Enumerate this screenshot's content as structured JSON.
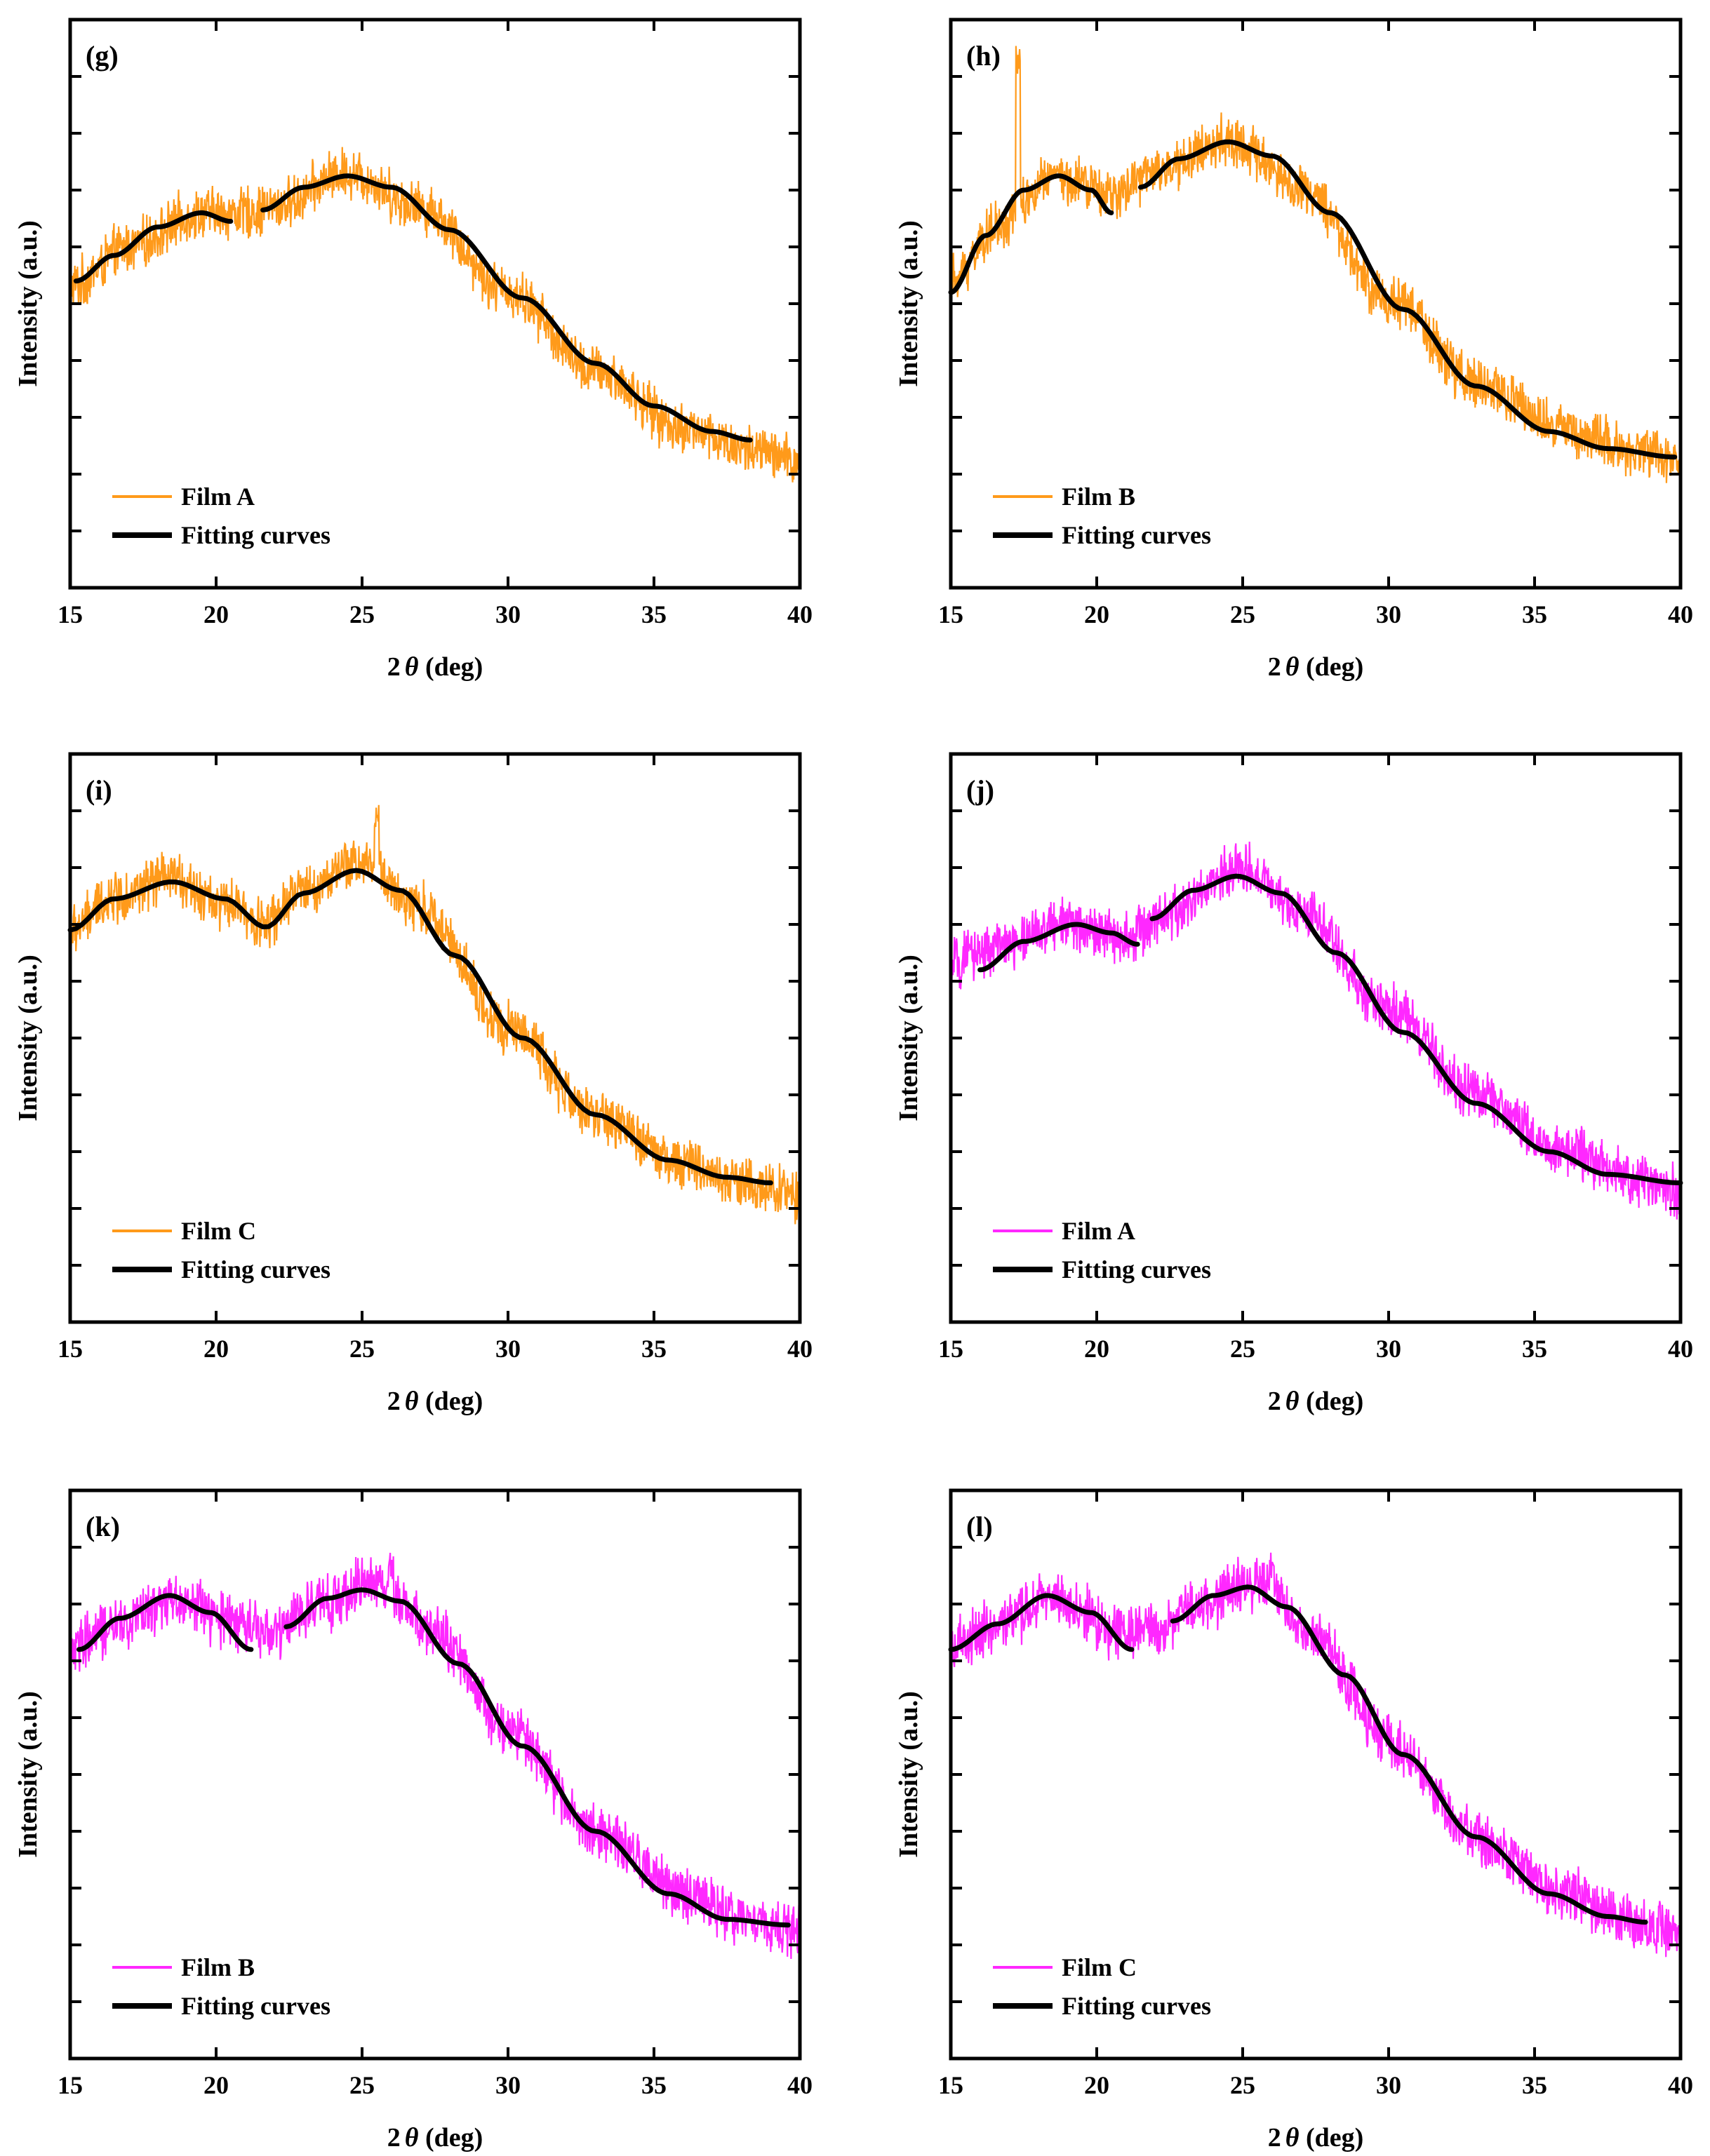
{
  "figure": {
    "colors": {
      "orange": "#ff9a1a",
      "magenta": "#ff28ff",
      "fit": "#000000",
      "axis": "#000000"
    }
  },
  "chart_data": [
    {
      "type": "line",
      "panel": "(g)",
      "legend": [
        "Film A",
        "Fitting curves"
      ],
      "color": "orange",
      "xlabel_prefix": "2",
      "xlabel_symbol": "θ",
      "xlabel_suffix": " (deg)",
      "ylabel": "Intensity (a.u.)",
      "xlim": [
        15,
        40
      ],
      "xticks": [
        15,
        20,
        25,
        30,
        35,
        40
      ],
      "ylim": [
        0,
        10
      ],
      "yticks_count": 10,
      "series": [
        {
          "name": "Film A",
          "points": [
            [
              15,
              5.3
            ],
            [
              17,
              6.0
            ],
            [
              19.5,
              6.6
            ],
            [
              21,
              6.6
            ],
            [
              22,
              6.7
            ],
            [
              24.5,
              7.3
            ],
            [
              27,
              6.7
            ],
            [
              30,
              5.2
            ],
            [
              33,
              3.8
            ],
            [
              36,
              2.8
            ],
            [
              38.5,
              2.4
            ],
            [
              40,
              2.2
            ]
          ],
          "noise": 0.55
        }
      ],
      "fits": [
        {
          "name": "Fitting curves",
          "points": [
            [
              15.2,
              5.4
            ],
            [
              16.5,
              5.85
            ],
            [
              18,
              6.35
            ],
            [
              19.5,
              6.6
            ],
            [
              20.5,
              6.45
            ]
          ]
        },
        {
          "name": "Fitting curves",
          "points": [
            [
              21.6,
              6.65
            ],
            [
              23,
              7.05
            ],
            [
              24.5,
              7.25
            ],
            [
              26,
              7.05
            ],
            [
              28,
              6.3
            ],
            [
              30.5,
              5.1
            ],
            [
              33,
              3.95
            ],
            [
              35,
              3.2
            ],
            [
              37,
              2.75
            ],
            [
              38.3,
              2.6
            ]
          ]
        }
      ]
    },
    {
      "type": "line",
      "panel": "(h)",
      "legend": [
        "Film B",
        "Fitting curves"
      ],
      "color": "orange",
      "xlabel_prefix": "2",
      "xlabel_symbol": "θ",
      "xlabel_suffix": " (deg)",
      "ylabel": "Intensity (a.u.)",
      "xlim": [
        15,
        40
      ],
      "xticks": [
        15,
        20,
        25,
        30,
        35,
        40
      ],
      "ylim": [
        0,
        10
      ],
      "yticks_count": 10,
      "series": [
        {
          "name": "Film B",
          "points": [
            [
              15,
              5.4
            ],
            [
              16.5,
              6.3
            ],
            [
              18.5,
              7.2
            ],
            [
              19.5,
              7.1
            ],
            [
              20.5,
              6.9
            ],
            [
              22,
              7.3
            ],
            [
              24.5,
              7.9
            ],
            [
              27,
              7.0
            ],
            [
              30,
              5.1
            ],
            [
              33,
              3.6
            ],
            [
              36,
              2.8
            ],
            [
              38.5,
              2.4
            ],
            [
              40,
              2.2
            ]
          ],
          "noise": 0.55,
          "spike": [
            17.3,
            9.6
          ]
        }
      ],
      "fits": [
        {
          "name": "Fitting curves",
          "points": [
            [
              15,
              5.2
            ],
            [
              16.2,
              6.2
            ],
            [
              17.5,
              7.0
            ],
            [
              18.7,
              7.25
            ],
            [
              19.8,
              7.0
            ],
            [
              20.5,
              6.6
            ]
          ]
        },
        {
          "name": "Fitting curves",
          "points": [
            [
              21.5,
              7.05
            ],
            [
              22.8,
              7.55
            ],
            [
              24.5,
              7.85
            ],
            [
              26,
              7.6
            ],
            [
              28,
              6.6
            ],
            [
              30.5,
              4.9
            ],
            [
              33,
              3.55
            ],
            [
              35.5,
              2.75
            ],
            [
              37.5,
              2.45
            ],
            [
              39.8,
              2.3
            ]
          ]
        }
      ]
    },
    {
      "type": "line",
      "panel": "(i)",
      "legend": [
        "Film C",
        "Fitting curves"
      ],
      "color": "orange",
      "xlabel_prefix": "2",
      "xlabel_symbol": "θ",
      "xlabel_suffix": " (deg)",
      "ylabel": "Intensity (a.u.)",
      "xlim": [
        15,
        40
      ],
      "xticks": [
        15,
        20,
        25,
        30,
        35,
        40
      ],
      "ylim": [
        0,
        10
      ],
      "yticks_count": 10,
      "series": [
        {
          "name": "Film C",
          "points": [
            [
              15,
              6.9
            ],
            [
              16.5,
              7.5
            ],
            [
              18.5,
              7.8
            ],
            [
              20.5,
              7.3
            ],
            [
              21.7,
              7.0
            ],
            [
              23,
              7.6
            ],
            [
              25,
              8.1
            ],
            [
              27,
              7.3
            ],
            [
              30,
              5.2
            ],
            [
              33,
              3.6
            ],
            [
              36,
              2.8
            ],
            [
              38.5,
              2.4
            ],
            [
              40,
              2.2
            ]
          ],
          "noise": 0.55,
          "spike": [
            25.5,
            9.2
          ]
        }
      ],
      "fits": [
        {
          "name": "Fitting curves",
          "points": [
            [
              15,
              6.9
            ],
            [
              16.5,
              7.45
            ],
            [
              18.5,
              7.75
            ],
            [
              20.3,
              7.45
            ],
            [
              21.7,
              6.95
            ],
            [
              23,
              7.55
            ],
            [
              24.8,
              7.95
            ],
            [
              26.3,
              7.6
            ],
            [
              28.2,
              6.45
            ],
            [
              30.5,
              5.0
            ],
            [
              33,
              3.65
            ],
            [
              35.5,
              2.85
            ],
            [
              37.5,
              2.55
            ],
            [
              39,
              2.45
            ]
          ]
        }
      ]
    },
    {
      "type": "line",
      "panel": "(j)",
      "legend": [
        "Film A",
        "Fitting curves"
      ],
      "color": "magenta",
      "xlabel_prefix": "2",
      "xlabel_symbol": "θ",
      "xlabel_suffix": " (deg)",
      "ylabel": "Intensity (a.u.)",
      "xlim": [
        15,
        40
      ],
      "xticks": [
        15,
        20,
        25,
        30,
        35,
        40
      ],
      "ylim": [
        0,
        10
      ],
      "yticks_count": 10,
      "series": [
        {
          "name": "Film A",
          "points": [
            [
              15,
              6.3
            ],
            [
              16.5,
              6.6
            ],
            [
              19,
              7.0
            ],
            [
              21,
              6.8
            ],
            [
              22.5,
              7.2
            ],
            [
              25,
              8.0
            ],
            [
              27,
              7.2
            ],
            [
              30,
              5.5
            ],
            [
              33,
              4.0
            ],
            [
              36,
              3.0
            ],
            [
              38.5,
              2.5
            ],
            [
              40,
              2.3
            ]
          ],
          "noise": 0.55
        }
      ],
      "fits": [
        {
          "name": "Fitting curves",
          "points": [
            [
              16,
              6.2
            ],
            [
              17.5,
              6.7
            ],
            [
              19.3,
              7.0
            ],
            [
              20.5,
              6.85
            ],
            [
              21.4,
              6.65
            ]
          ]
        },
        {
          "name": "Fitting curves",
          "points": [
            [
              21.9,
              7.1
            ],
            [
              23.3,
              7.6
            ],
            [
              24.8,
              7.85
            ],
            [
              26.3,
              7.55
            ],
            [
              28.2,
              6.5
            ],
            [
              30.5,
              5.1
            ],
            [
              33,
              3.85
            ],
            [
              35.5,
              3.0
            ],
            [
              37.5,
              2.6
            ],
            [
              40,
              2.45
            ]
          ]
        }
      ]
    },
    {
      "type": "line",
      "panel": "(k)",
      "legend": [
        "Film B",
        "Fitting curves"
      ],
      "color": "magenta",
      "xlabel_prefix": "2",
      "xlabel_symbol": "θ",
      "xlabel_suffix": " (deg)",
      "ylabel": "Intensity (a.u.)",
      "xlim": [
        15,
        40
      ],
      "xticks": [
        15,
        20,
        25,
        30,
        35,
        40
      ],
      "ylim": [
        0,
        10
      ],
      "yticks_count": 10,
      "series": [
        {
          "name": "Film B",
          "points": [
            [
              15,
              7.2
            ],
            [
              16.5,
              7.6
            ],
            [
              18.5,
              8.1
            ],
            [
              20.5,
              7.7
            ],
            [
              22,
              7.5
            ],
            [
              23.5,
              8.0
            ],
            [
              25.5,
              8.4
            ],
            [
              27.5,
              7.5
            ],
            [
              30,
              5.8
            ],
            [
              33,
              4.0
            ],
            [
              36,
              2.9
            ],
            [
              38.5,
              2.4
            ],
            [
              40,
              2.2
            ]
          ],
          "noise": 0.6,
          "spike": [
            26,
            9.0
          ]
        }
      ],
      "fits": [
        {
          "name": "Fitting curves",
          "points": [
            [
              15.3,
              7.2
            ],
            [
              16.7,
              7.75
            ],
            [
              18.4,
              8.15
            ],
            [
              19.8,
              7.85
            ],
            [
              21.2,
              7.2
            ]
          ]
        },
        {
          "name": "Fitting curves",
          "points": [
            [
              22.4,
              7.6
            ],
            [
              23.8,
              8.1
            ],
            [
              25,
              8.25
            ],
            [
              26.3,
              8.05
            ],
            [
              28.3,
              6.95
            ],
            [
              30.5,
              5.5
            ],
            [
              33,
              4.0
            ],
            [
              35.5,
              2.9
            ],
            [
              37.5,
              2.45
            ],
            [
              39.6,
              2.35
            ]
          ]
        }
      ]
    },
    {
      "type": "line",
      "panel": "(l)",
      "legend": [
        "Film C",
        "Fitting curves"
      ],
      "color": "magenta",
      "xlabel_prefix": "2",
      "xlabel_symbol": "θ",
      "xlabel_suffix": " (deg)",
      "ylabel": "Intensity (a.u.)",
      "xlim": [
        15,
        40
      ],
      "xticks": [
        15,
        20,
        25,
        30,
        35,
        40
      ],
      "ylim": [
        0,
        10
      ],
      "yticks_count": 10,
      "series": [
        {
          "name": "Film C",
          "points": [
            [
              15,
              7.2
            ],
            [
              16.5,
              7.6
            ],
            [
              18.5,
              8.1
            ],
            [
              20.5,
              7.6
            ],
            [
              22,
              7.5
            ],
            [
              23.5,
              8.0
            ],
            [
              25.5,
              8.4
            ],
            [
              27.5,
              7.4
            ],
            [
              30,
              5.6
            ],
            [
              33,
              3.9
            ],
            [
              36,
              2.9
            ],
            [
              38.5,
              2.4
            ],
            [
              40,
              2.2
            ]
          ],
          "noise": 0.6,
          "spike": [
            26,
            9.0
          ]
        }
      ],
      "fits": [
        {
          "name": "Fitting curves",
          "points": [
            [
              15,
              7.2
            ],
            [
              16.6,
              7.65
            ],
            [
              18.3,
              8.15
            ],
            [
              19.8,
              7.85
            ],
            [
              21.2,
              7.2
            ]
          ]
        },
        {
          "name": "Fitting curves",
          "points": [
            [
              22.6,
              7.7
            ],
            [
              24,
              8.15
            ],
            [
              25.2,
              8.3
            ],
            [
              26.5,
              7.95
            ],
            [
              28.5,
              6.75
            ],
            [
              30.5,
              5.35
            ],
            [
              33,
              3.9
            ],
            [
              35.5,
              2.9
            ],
            [
              37.5,
              2.5
            ],
            [
              38.8,
              2.4
            ]
          ]
        }
      ]
    }
  ]
}
